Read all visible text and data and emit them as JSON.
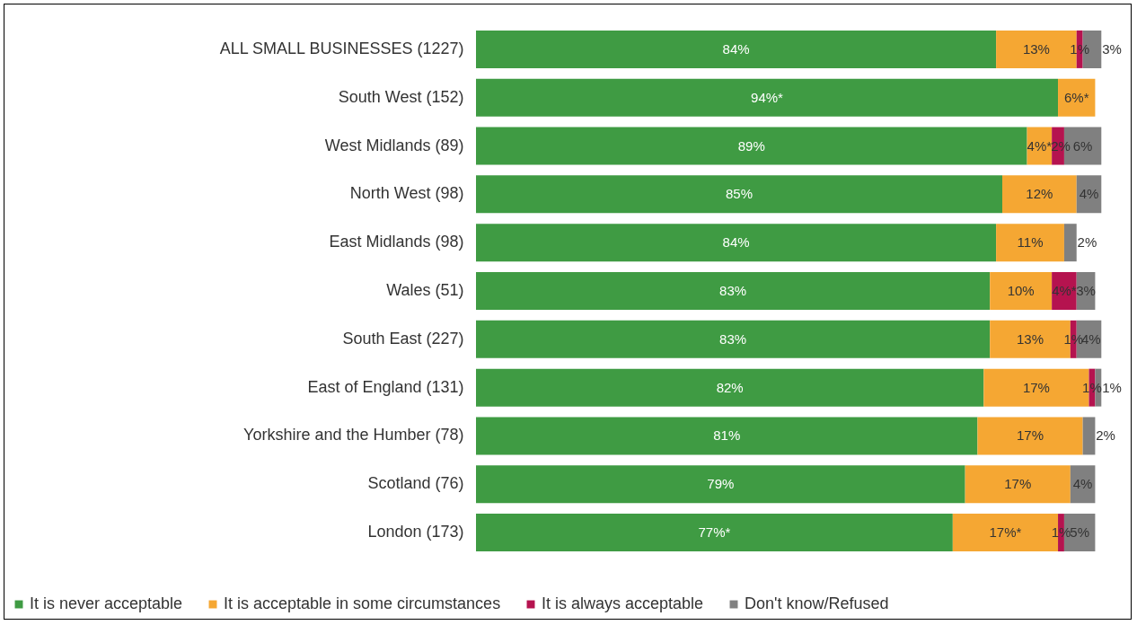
{
  "chart_data": {
    "type": "bar",
    "orientation": "horizontal",
    "stacked": true,
    "legend": "bottom",
    "categories": [
      "ALL SMALL BUSINESSES (1227)",
      "South West (152)",
      "West Midlands (89)",
      "North West (98)",
      "East Midlands (98)",
      "Wales (51)",
      "South East (227)",
      "East of England (131)",
      "Yorkshire and the Humber (78)",
      "Scotland (76)",
      "London (173)"
    ],
    "series": [
      {
        "name": "It is never acceptable",
        "color": "#3f9b43",
        "values": [
          84,
          94,
          89,
          85,
          84,
          83,
          83,
          82,
          81,
          79,
          77
        ],
        "value_labels": [
          "84%",
          "94%*",
          "89%",
          "85%",
          "84%",
          "83%",
          "83%",
          "82%",
          "81%",
          "79%",
          "77%*"
        ]
      },
      {
        "name": "It is acceptable in some circumstances",
        "color": "#f5a733",
        "values": [
          13,
          6,
          4,
          12,
          11,
          10,
          13,
          17,
          17,
          17,
          17
        ],
        "value_labels": [
          "13%",
          "6%*",
          "4%*",
          "12%",
          "11%",
          "10%",
          "13%",
          "17%",
          "17%",
          "17%",
          "17%*"
        ]
      },
      {
        "name": "It is always acceptable",
        "color": "#b5134f",
        "values": [
          1,
          null,
          2,
          null,
          null,
          4,
          1,
          1,
          null,
          null,
          1
        ],
        "value_labels": [
          "1%",
          null,
          "2%",
          null,
          null,
          "4%*",
          "1%",
          "1%",
          null,
          null,
          "1%"
        ]
      },
      {
        "name": "Don't know/Refused",
        "color": "#808080",
        "values": [
          3,
          null,
          6,
          4,
          2,
          3,
          4,
          1,
          2,
          4,
          5
        ],
        "value_labels": [
          "3%",
          null,
          "6%",
          "4%",
          "2%",
          "3%",
          "4%",
          "1%",
          "2%",
          "4%",
          "5%"
        ]
      }
    ]
  }
}
